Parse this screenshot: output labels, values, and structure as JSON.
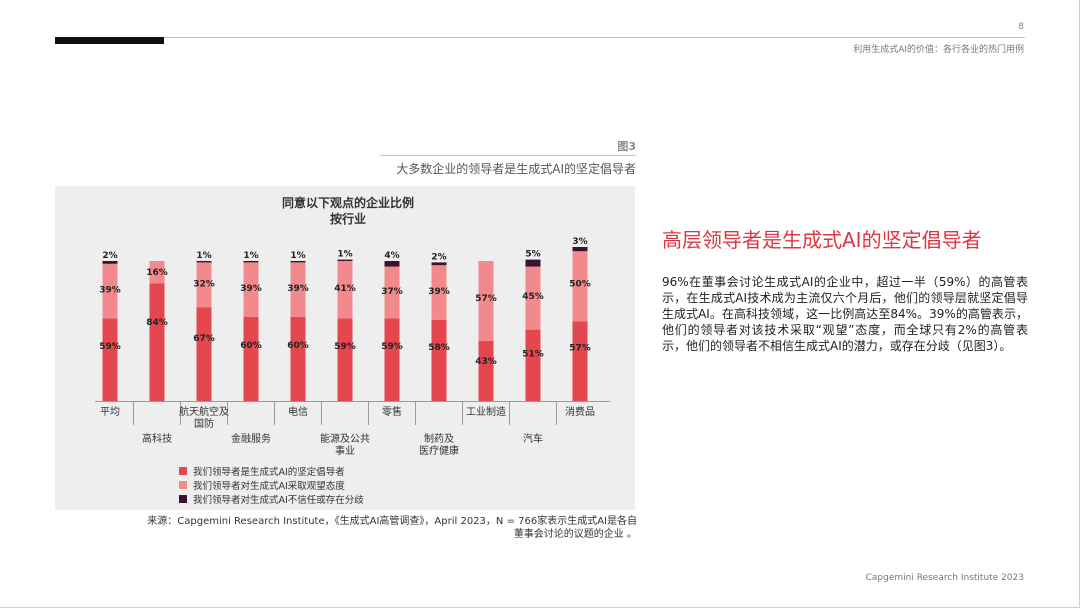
{
  "header": {
    "page_number": "8",
    "subtitle": "利用生成式AI的价值：各行各业的热门用例"
  },
  "figure": {
    "label": "图3",
    "title": "大多数企业的领导者是生成式AI的坚定倡导者"
  },
  "chart_data": {
    "type": "bar",
    "stacked": true,
    "title": "同意以下观点的企业比例",
    "subtitle": "按行业",
    "categories": [
      "平均",
      "高科技",
      "航天航空及国防",
      "金融服务",
      "电信",
      "能源及公共事业",
      "零售",
      "制药及医疗健康",
      "工业制造",
      "汽车",
      "消费品"
    ],
    "category_label_lines": [
      [
        "平均"
      ],
      [
        "高科技"
      ],
      [
        "航天航空及",
        "国防"
      ],
      [
        "金融服务"
      ],
      [
        "电信"
      ],
      [
        "能源及公共",
        "事业"
      ],
      [
        "零售"
      ],
      [
        "制药及",
        "医疗健康"
      ],
      [
        "工业制造"
      ],
      [
        "汽车"
      ],
      [
        "消费品"
      ]
    ],
    "series": [
      {
        "name": "我们领导者是生成式AI的坚定倡导者",
        "color": "#e5474f",
        "values": [
          59,
          84,
          67,
          60,
          60,
          59,
          59,
          58,
          43,
          51,
          57
        ]
      },
      {
        "name": "我们领导者对生成式AI采取观望态度",
        "color": "#f2898c",
        "values": [
          39,
          16,
          32,
          39,
          39,
          41,
          37,
          39,
          57,
          45,
          50
        ]
      },
      {
        "name": "我们领导者对生成式AI不信任或存在分歧",
        "color": "#3d1230",
        "values": [
          2,
          null,
          1,
          1,
          1,
          1,
          4,
          2,
          null,
          5,
          3
        ]
      }
    ],
    "legend_position": "bottom-left",
    "grid": false
  },
  "source": {
    "line1": "来源：Capgemini Research Institute，《生成式AI高管调查》，April 2023，N = 766家表示生成式AI是各自",
    "line2": "董事会讨论的议题的企业 。"
  },
  "article": {
    "heading": "高层领导者是生成式AI的坚定倡导者",
    "body": "96%在董事会讨论生成式AI的企业中，超过一半（59%）的高管表示，在生成式AI技术成为主流仅六个月后，他们的领导层就坚定倡导生成式AI。在高科技领域，这一比例高达至84%。39%的高管表示，他们的领导者对该技术采取“观望”态度，而全球只有2%的高管表示，他们的领导者不相信生成式AI的潜力，或存在分歧（见图3）。"
  },
  "footer": {
    "text": "Capgemini Research Institute 2023"
  }
}
